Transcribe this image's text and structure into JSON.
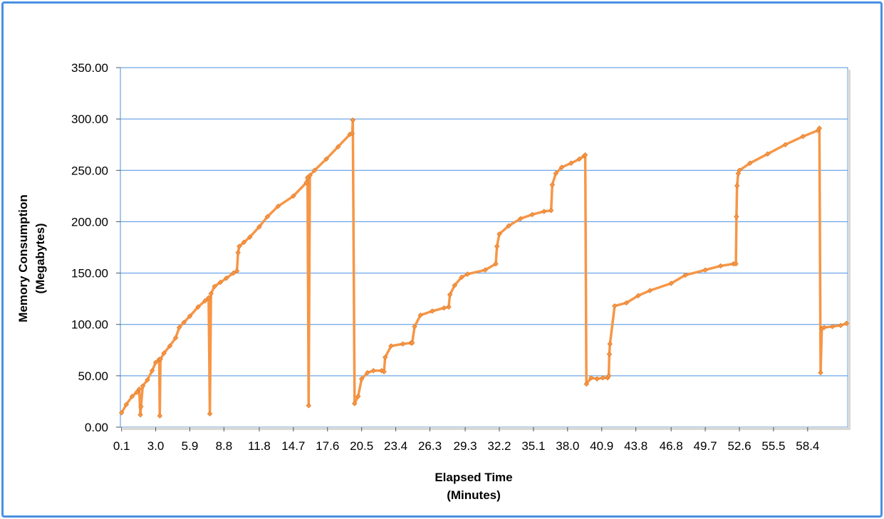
{
  "chart_data": {
    "type": "line",
    "xlabel": [
      "Elapsed Time",
      "(Minutes)"
    ],
    "ylabel": [
      "Memory Consumption",
      "(Megabytes)"
    ],
    "x_tick_labels": [
      "0.1",
      "3.0",
      "5.9",
      "8.8",
      "11.8",
      "14.7",
      "17.6",
      "20.5",
      "23.4",
      "26.3",
      "29.3",
      "32.2",
      "35.1",
      "38.0",
      "40.9",
      "43.8",
      "46.8",
      "49.7",
      "52.6",
      "55.5",
      "58.4"
    ],
    "y_tick_labels": [
      "0.00",
      "50.00",
      "100.00",
      "150.00",
      "200.00",
      "250.00",
      "300.00",
      "350.00"
    ],
    "ylim": [
      0,
      350
    ],
    "xlim": [
      0,
      61.8
    ],
    "grid": "horizontal",
    "legend": "none",
    "line_color": "#f79646",
    "grid_color": "#4a90e2",
    "series": [
      {
        "x": [
          0.1,
          0.5,
          1.0,
          1.4,
          1.6,
          1.7,
          1.75,
          1.9,
          2.3,
          2.7,
          3.0,
          3.3,
          3.35,
          3.4,
          3.7,
          4.2,
          4.7,
          5.0,
          5.4,
          5.9,
          6.6,
          7.2,
          7.5,
          7.6,
          7.7,
          8.0,
          8.5,
          9.0,
          9.6,
          9.9,
          10.0,
          10.1,
          10.5,
          11.0,
          11.8,
          12.5,
          13.4,
          14.7,
          15.8,
          15.9,
          16.0,
          16.1,
          16.5,
          17.5,
          18.5,
          19.5,
          19.7,
          19.75,
          19.9,
          20.2,
          20.5,
          21.0,
          21.5,
          22.2,
          22.4,
          22.5,
          23.0,
          24.0,
          24.7,
          24.8,
          25.0,
          25.5,
          26.5,
          27.5,
          27.9,
          28.0,
          28.4,
          29.0,
          29.5,
          31.0,
          31.9,
          32.0,
          32.2,
          33.0,
          34.0,
          35.0,
          36.0,
          36.6,
          36.7,
          37.0,
          37.5,
          38.3,
          39.0,
          39.4,
          39.5,
          39.6,
          40.0,
          40.5,
          41.0,
          41.4,
          41.5,
          41.55,
          41.6,
          42.0,
          43.0,
          44.0,
          45.0,
          46.8,
          48.0,
          49.7,
          51.0,
          52.1,
          52.3,
          52.35,
          52.4,
          52.5,
          52.6,
          53.5,
          55.0,
          56.5,
          58.0,
          59.3,
          59.4,
          59.5,
          59.6,
          59.8,
          60.5,
          61.2,
          61.7
        ],
        "values": [
          14,
          22,
          30,
          34,
          37,
          12,
          20,
          40,
          46,
          55,
          63,
          66,
          11,
          66,
          72,
          79,
          87,
          97,
          102,
          108,
          117,
          123,
          126,
          13,
          130,
          137,
          141,
          145,
          150,
          152,
          170,
          176,
          180,
          185,
          195,
          205,
          215,
          225,
          238,
          243,
          21,
          245,
          250,
          261,
          273,
          285,
          286,
          299,
          23,
          30,
          47,
          53,
          55,
          55,
          54,
          68,
          79,
          81,
          82,
          82,
          98,
          109,
          113,
          116,
          117,
          129,
          138,
          146,
          149,
          153,
          159,
          176,
          188,
          196,
          203,
          207,
          210,
          211,
          236,
          247,
          253,
          257,
          261,
          264,
          265,
          42,
          48,
          47,
          48,
          48,
          50,
          71,
          81,
          118,
          121,
          128,
          133,
          140,
          148,
          153,
          157,
          159,
          159,
          205,
          235,
          247,
          250,
          257,
          266,
          275,
          283,
          289,
          291,
          53,
          96,
          97,
          98,
          99,
          101
        ]
      }
    ]
  }
}
